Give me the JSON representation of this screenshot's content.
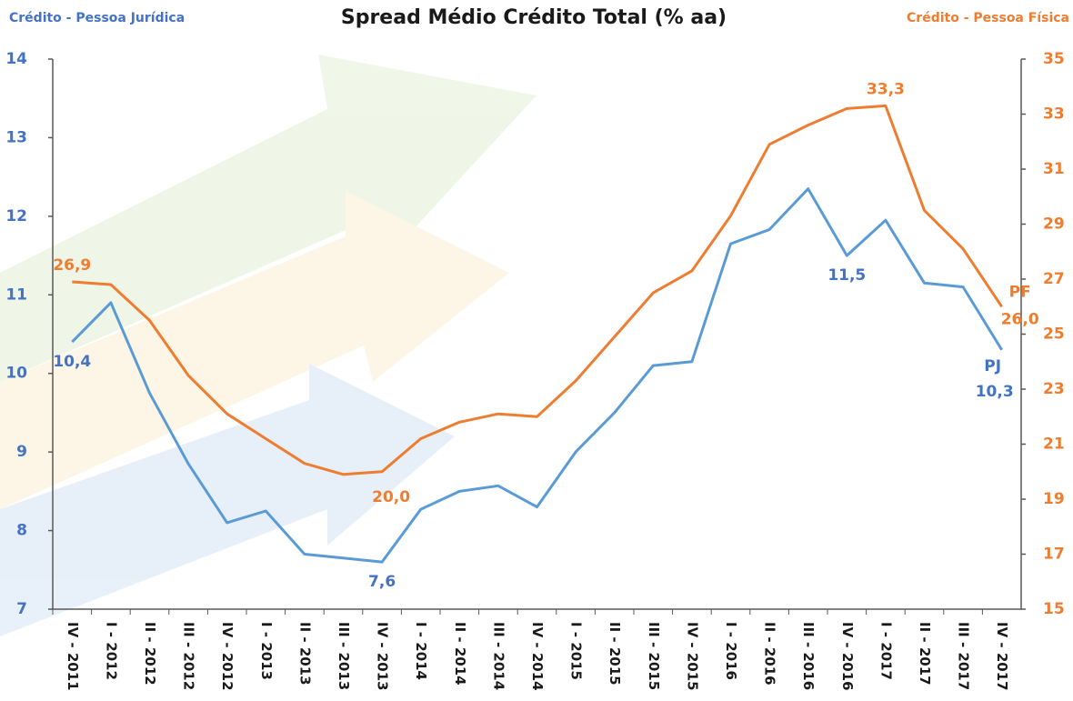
{
  "chart_data": {
    "type": "line",
    "title": "Spread Médio Crédito Total (% aa)",
    "y_label": "Crédito - Pessoa Jurídica",
    "y2_label": "Crédito - Pessoa Física",
    "categories": [
      "IV - 2011",
      "I - 2012",
      "II - 2012",
      "III - 2012",
      "IV - 2012",
      "I - 2013",
      "II - 2013",
      "III - 2013",
      "IV - 2013",
      "I - 2014",
      "II - 2014",
      "III - 2014",
      "IV - 2014",
      "I - 2015",
      "II - 2015",
      "III - 2015",
      "IV - 2015",
      "I - 2016",
      "II - 2016",
      "III - 2016",
      "IV - 2016",
      "I - 2017",
      "II - 2017",
      "III - 2017",
      "IV - 2017"
    ],
    "series": [
      {
        "name": "PJ",
        "color": "#5b9bd5",
        "label_color": "#4472c4",
        "axis": "y",
        "values": [
          10.4,
          10.9,
          9.75,
          8.85,
          8.1,
          8.25,
          7.7,
          7.65,
          7.6,
          8.27,
          8.5,
          8.57,
          8.3,
          9.0,
          9.5,
          10.1,
          10.15,
          11.65,
          11.83,
          12.35,
          11.5,
          11.95,
          11.15,
          11.1,
          10.3
        ],
        "value_labels": [
          "10,4",
          null,
          null,
          null,
          null,
          null,
          null,
          null,
          "7,6",
          null,
          null,
          null,
          null,
          null,
          null,
          null,
          null,
          null,
          null,
          null,
          "11,5",
          null,
          null,
          null,
          "10,3"
        ]
      },
      {
        "name": "PF",
        "color": "#ed7d31",
        "label_color": "#ed7d31",
        "axis": "y2",
        "values": [
          26.9,
          26.8,
          25.5,
          23.5,
          22.1,
          21.2,
          20.3,
          19.9,
          20.0,
          21.2,
          21.8,
          22.1,
          22.0,
          23.3,
          24.9,
          26.5,
          27.3,
          29.3,
          31.9,
          32.6,
          33.2,
          33.3,
          29.5,
          28.1,
          26.0
        ],
        "value_labels": [
          "26,9",
          null,
          null,
          null,
          null,
          null,
          null,
          null,
          "20,0",
          null,
          null,
          null,
          null,
          null,
          null,
          null,
          null,
          null,
          null,
          null,
          null,
          "33,3",
          null,
          null,
          "26,0"
        ]
      }
    ],
    "ylim": [
      7,
      14
    ],
    "yticks": [
      7,
      8,
      9,
      10,
      11,
      12,
      13,
      14
    ],
    "y2lim": [
      15,
      35
    ],
    "y2ticks": [
      15,
      17,
      19,
      21,
      23,
      25,
      27,
      29,
      31,
      33,
      35
    ]
  }
}
